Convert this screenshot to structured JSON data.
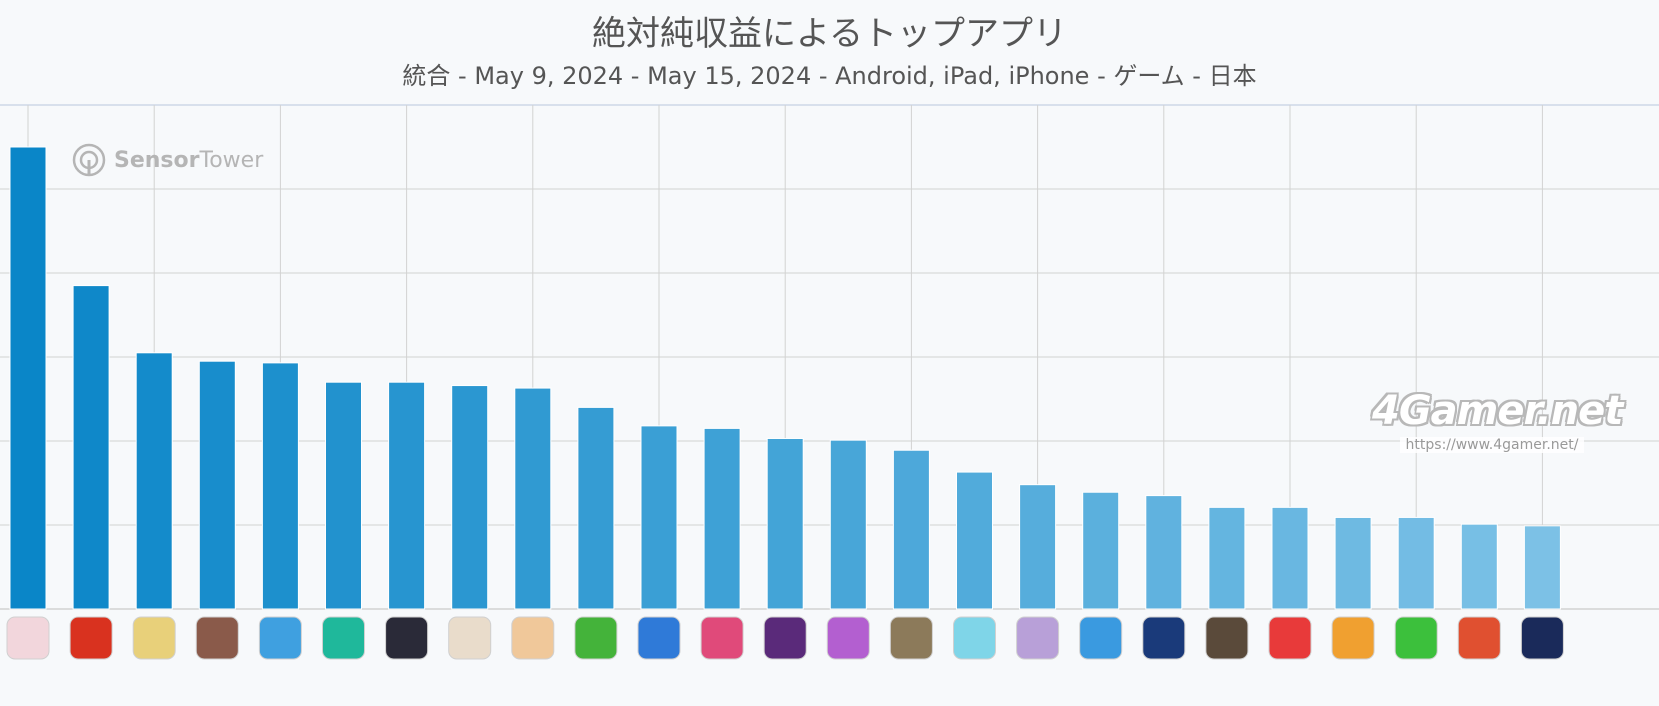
{
  "chart_data": {
    "type": "bar",
    "title": "絶対純収益によるトップアプリ",
    "subtitle": "統合 - May 9, 2024 - May 15, 2024 - Android, iPad, iPhone - ゲーム - 日本",
    "xlabel": "",
    "ylabel": "",
    "ylim": [
      0,
      6
    ],
    "grid": true,
    "legend": "none",
    "series": [
      {
        "values": [
          5.5,
          3.85,
          3.05,
          2.95,
          2.93,
          2.7,
          2.7,
          2.66,
          2.63,
          2.4,
          2.18,
          2.15,
          2.03,
          2.01,
          1.89,
          1.63,
          1.48,
          1.39,
          1.35,
          1.21,
          1.21,
          1.09,
          1.09,
          1.01,
          0.99
        ]
      }
    ],
    "bar_color_start": "#0a86c8",
    "bar_color_end": "#7cc1e6",
    "icons": [
      "honkai-star-rail-icon",
      "monster-strike-icon",
      "fate-grand-order-icon",
      "goddess-of-victory-nikke-icon",
      "puzzle-game-x2-icon",
      "green-character-game-icon",
      "netmarble-anime-game-icon",
      "genshin-impact-icon",
      "cooking-anime-game-icon",
      "legend-of-mushroom-icon",
      "royal-match-icon",
      "anime-music-game-icon",
      "basketball-anime-game-icon",
      "uma-musume-icon",
      "pubg-mobile-icon",
      "project-sekai-icon",
      "anime-girl-game-icon",
      "merge-numbers-game-icon",
      "blue-orb-game-icon",
      "arknights-icon",
      "yokai-watch-icon",
      "dragon-ball-legends-icon",
      "line-pink-character-icon",
      "bear-puzzle-game-icon",
      "yu-gi-oh-duel-links-icon"
    ],
    "icon_colors": [
      "#f2d6dc",
      "#d9321f",
      "#e8d07a",
      "#8a5a4a",
      "#3fa0e0",
      "#1fb89b",
      "#2a2a38",
      "#e9dccb",
      "#f0c89a",
      "#44b33a",
      "#2f7ad8",
      "#e04a7a",
      "#5a2a7a",
      "#b35fd0",
      "#8c7a5a",
      "#7fd5e8",
      "#b8a0d8",
      "#3a9ae0",
      "#1a3a7a",
      "#5a4a3a",
      "#e83a3a",
      "#f0a030",
      "#3cc03c",
      "#e05030",
      "#1a2a5a"
    ]
  },
  "brand": {
    "part1": "Sensor",
    "part2": "Tower"
  },
  "watermark": {
    "logo": "4Gamer.net",
    "url": "https://www.4gamer.net/"
  }
}
